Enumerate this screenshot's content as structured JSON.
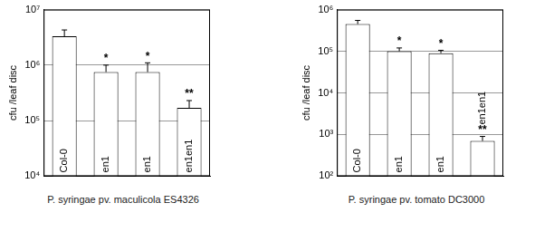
{
  "chart_data": [
    {
      "type": "bar",
      "title": "P. syringae pv. maculicola ES4326",
      "ylabel": "cfu /leaf disc",
      "categories": [
        "Col-0",
        "en1",
        "en1",
        "en1en1"
      ],
      "values": [
        3300000,
        750000,
        750000,
        170000
      ],
      "errors": [
        1000000,
        250000,
        350000,
        60000
      ],
      "annotations": [
        null,
        "*",
        "*",
        "**"
      ],
      "color": "#ffffff",
      "log": "y",
      "grid": true,
      "tick_labels": "y",
      "ylim": [
        10000,
        10000000
      ],
      "yticks": [
        {
          "value": 10000,
          "label": "10⁴"
        },
        {
          "value": 100000,
          "label": "10⁵"
        },
        {
          "value": 1000000,
          "label": "10⁶"
        },
        {
          "value": 10000000,
          "label": "10⁷"
        }
      ]
    },
    {
      "type": "bar",
      "title": "P. syringae pv. tomato DC3000",
      "ylabel": "cfu /leaf disc",
      "categories": [
        "Col-0",
        "en1",
        "en1",
        "en1en1"
      ],
      "values": [
        450000,
        100000,
        90000,
        700
      ],
      "errors": [
        100000,
        20000,
        15000,
        200
      ],
      "annotations": [
        null,
        "*",
        "*",
        "**"
      ],
      "color": "#ffffff",
      "log": "y",
      "grid": true,
      "tick_labels": "y",
      "ylim": [
        100,
        1000000
      ],
      "yticks": [
        {
          "value": 100,
          "label": "10²"
        },
        {
          "value": 1000,
          "label": "10³"
        },
        {
          "value": 10000,
          "label": "10⁴"
        },
        {
          "value": 100000,
          "label": "10⁵"
        },
        {
          "value": 1000000,
          "label": "10⁶"
        }
      ]
    }
  ]
}
